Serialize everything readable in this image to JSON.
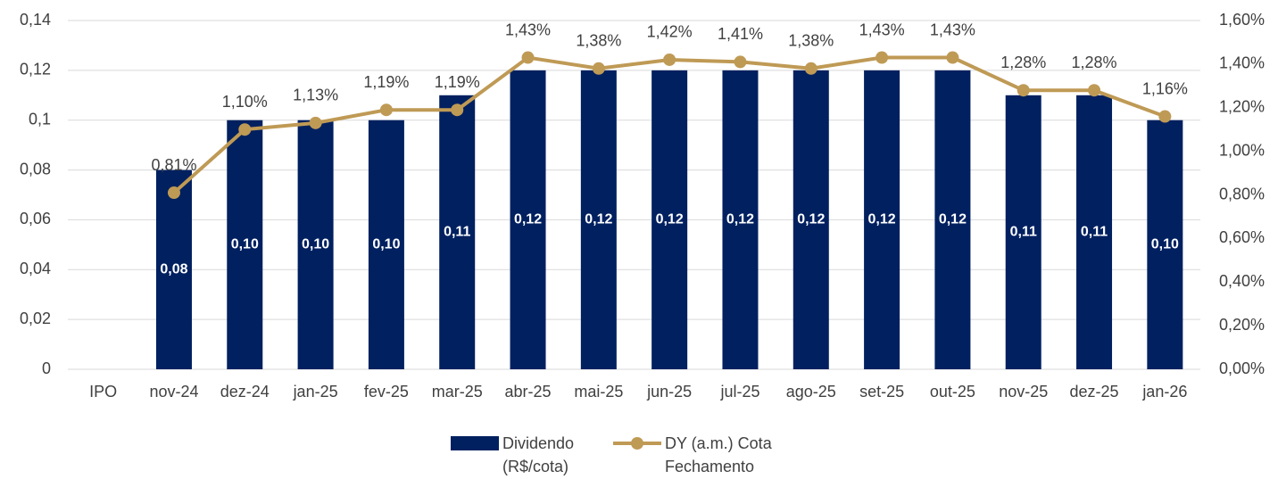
{
  "chart_data": {
    "type": "bar",
    "categories": [
      "IPO",
      "nov-24",
      "dez-24",
      "jan-25",
      "fev-25",
      "mar-25",
      "abr-25",
      "mai-25",
      "jun-25",
      "jul-25",
      "ago-25",
      "set-25",
      "out-25",
      "nov-25",
      "dez-25",
      "jan-26"
    ],
    "series": [
      {
        "name": "Dividendo (R$/cota)",
        "type": "bar",
        "color": "#002060",
        "values": [
          null,
          0.08,
          0.1,
          0.1,
          0.1,
          0.11,
          0.12,
          0.12,
          0.12,
          0.12,
          0.12,
          0.12,
          0.12,
          0.11,
          0.11,
          0.1
        ],
        "value_labels": [
          null,
          "0,08",
          "0,10",
          "0,10",
          "0,10",
          "0,11",
          "0,12",
          "0,12",
          "0,12",
          "0,12",
          "0,12",
          "0,12",
          "0,12",
          "0,11",
          "0,11",
          "0,10"
        ]
      },
      {
        "name": "DY (a.m.) Cota Fechamento",
        "type": "line",
        "axis": "y2",
        "color": "#bf9a55",
        "values": [
          null,
          0.81,
          1.1,
          1.13,
          1.19,
          1.19,
          1.43,
          1.38,
          1.42,
          1.41,
          1.38,
          1.43,
          1.43,
          1.28,
          1.28,
          1.16
        ],
        "value_labels": [
          null,
          "0,81%",
          "1,10%",
          "1,13%",
          "1,19%",
          "1,19%",
          "1,43%",
          "1,38%",
          "1,42%",
          "1,41%",
          "1,38%",
          "1,43%",
          "1,43%",
          "1,28%",
          "1,28%",
          "1,16%"
        ]
      }
    ],
    "ylim": [
      0,
      0.14
    ],
    "yticks": [
      0,
      {
        "value": 0.02,
        "label": "0,02"
      },
      {
        "value": 0.04,
        "label": "0,04"
      },
      {
        "value": 0.06,
        "label": "0,06"
      },
      {
        "value": 0.08,
        "label": "0,08"
      },
      {
        "value": 0.1,
        "label": "0,1"
      },
      {
        "value": 0.12,
        "label": "0,12"
      },
      {
        "value": 0.14,
        "label": "0,14"
      }
    ],
    "y2lim": [
      0,
      1.6
    ],
    "y2ticks": [
      {
        "value": 0,
        "label": "0,00%"
      },
      {
        "value": 0.2,
        "label": "0,20%"
      },
      {
        "value": 0.4,
        "label": "0,40%"
      },
      {
        "value": 0.6,
        "label": "0,60%"
      },
      {
        "value": 0.8,
        "label": "0,80%"
      },
      {
        "value": 1.0,
        "label": "1,00%"
      },
      {
        "value": 1.2,
        "label": "1,20%"
      },
      {
        "value": 1.4,
        "label": "1,40%"
      },
      {
        "value": 1.6,
        "label": "1,60%"
      }
    ],
    "grid": true,
    "legend": "bottom"
  }
}
